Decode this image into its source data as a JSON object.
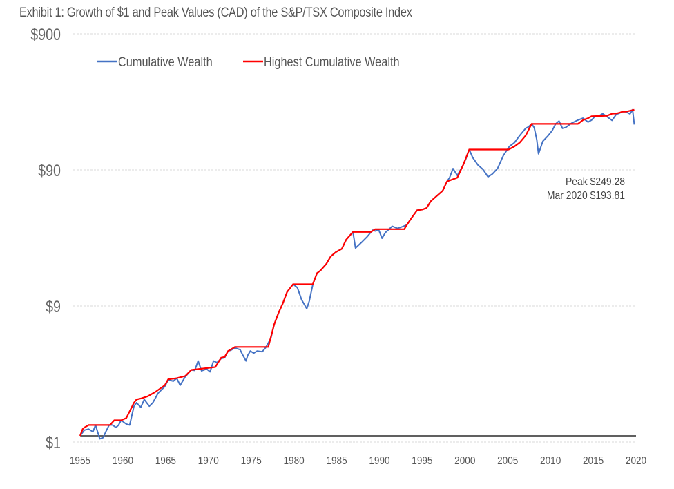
{
  "chart_data": {
    "type": "line",
    "title": "Exhibit 1: Growth of $1 and Peak Values (CAD) of the S&P/TSX Composite Index",
    "xlabel": "",
    "ylabel": "",
    "yscale": "log",
    "ylim": [
      0.9,
      900
    ],
    "xlim": [
      1955,
      2020
    ],
    "ytick_values": [
      0.9,
      9,
      90,
      900
    ],
    "ytick_labels": [
      "$1",
      "$9",
      "$90",
      "$900"
    ],
    "xtick_labels": [
      "1955",
      "1960",
      "1965",
      "1970",
      "1975",
      "1980",
      "1985",
      "1990",
      "1995",
      "2000",
      "2005",
      "2010",
      "2015",
      "2020"
    ],
    "grid": true,
    "baseline_value": 1,
    "legend": {
      "position": "top-left",
      "entries": [
        "Cumulative Wealth",
        "Highest Cumulative Wealth"
      ]
    },
    "colors": {
      "cumulative": "#4472c4",
      "highest": "#ff0000",
      "baseline": "#000000",
      "grid": "#d9d9d9"
    },
    "annotations": [
      "Peak $249.28",
      "Mar 2020 $193.81"
    ],
    "series": [
      {
        "name": "Cumulative Wealth",
        "x": [
          1955.0,
          1955.5,
          1956.0,
          1956.5,
          1956.8,
          1957.3,
          1957.7,
          1958.0,
          1958.4,
          1958.8,
          1959.2,
          1959.5,
          1959.8,
          1960.4,
          1960.8,
          1961.3,
          1961.6,
          1962.1,
          1962.5,
          1963.1,
          1963.5,
          1964.1,
          1964.9,
          1965.3,
          1965.9,
          1966.3,
          1966.7,
          1967.3,
          1968.0,
          1968.4,
          1968.8,
          1969.2,
          1969.8,
          1970.2,
          1970.6,
          1971.0,
          1971.5,
          1971.9,
          1972.3,
          1972.6,
          1973.1,
          1973.7,
          1974.0,
          1974.4,
          1974.6,
          1974.9,
          1975.3,
          1975.7,
          1976.3,
          1976.7,
          1977.3,
          1977.7,
          1978.2,
          1978.7,
          1979.2,
          1979.5,
          1979.9,
          1980.4,
          1980.9,
          1981.5,
          1981.8,
          1982.2,
          1982.7,
          1983.1,
          1983.8,
          1984.3,
          1984.9,
          1985.6,
          1986.1,
          1986.9,
          1987.2,
          1987.5,
          1987.9,
          1988.6,
          1989.2,
          1989.5,
          1989.9,
          1990.3,
          1990.7,
          1991.5,
          1992.1,
          1992.6,
          1993.2,
          1993.7,
          1994.4,
          1995.0,
          1995.5,
          1996.0,
          1996.8,
          1997.4,
          1997.9,
          1998.2,
          1998.6,
          1999.1,
          1999.8,
          2000.1,
          2000.5,
          2000.9,
          2001.5,
          2002.1,
          2002.7,
          2003.2,
          2003.8,
          2004.5,
          2005.2,
          2005.8,
          2006.4,
          2007.1,
          2007.4,
          2007.8,
          2008.1,
          2008.4,
          2008.6,
          2009.1,
          2009.7,
          2010.2,
          2010.6,
          2011.0,
          2011.4,
          2011.8,
          2012.5,
          2013.2,
          2013.8,
          2014.4,
          2014.8,
          2015.2,
          2015.7,
          2016.1,
          2016.6,
          2017.2,
          2017.7,
          2018.0,
          2018.4,
          2018.8,
          2019.3,
          2019.6,
          2019.8
        ],
        "values": [
          1.0,
          1.1,
          1.12,
          1.07,
          1.2,
          0.95,
          0.97,
          1.07,
          1.2,
          1.2,
          1.15,
          1.2,
          1.3,
          1.22,
          1.2,
          1.65,
          1.75,
          1.62,
          1.85,
          1.65,
          1.75,
          2.05,
          2.3,
          2.58,
          2.52,
          2.65,
          2.35,
          2.72,
          3.05,
          3.02,
          3.55,
          3.0,
          3.1,
          2.95,
          3.55,
          3.45,
          3.7,
          3.75,
          4.2,
          4.25,
          4.42,
          4.3,
          3.95,
          3.55,
          3.9,
          4.2,
          4.05,
          4.2,
          4.15,
          4.45,
          5.2,
          6.6,
          8.0,
          9.4,
          11.4,
          12.1,
          13.0,
          12.3,
          10.0,
          8.6,
          9.8,
          12.9,
          15.7,
          16.4,
          18.4,
          20.8,
          22.4,
          23.7,
          27.6,
          31.5,
          24.0,
          25.0,
          26.4,
          29.2,
          32.5,
          32.0,
          32.9,
          28.3,
          31.2,
          34.7,
          33.5,
          34.3,
          35.5,
          39.5,
          45.5,
          46.0,
          47.2,
          53.0,
          58.7,
          63.3,
          74.0,
          79.0,
          92.0,
          82.0,
          98.0,
          108.0,
          127.0,
          111.0,
          98.0,
          91.0,
          80.0,
          84.0,
          92.0,
          115.0,
          134.0,
          143.0,
          161.0,
          182.0,
          186.0,
          196.0,
          184.0,
          150.0,
          118.0,
          146.0,
          160.0,
          175.0,
          196.0,
          206.0,
          182.0,
          185.0,
          199.0,
          209.0,
          216.0,
          202.0,
          209.0,
          223.0,
          225.0,
          233.0,
          222.0,
          208.0,
          231.0,
          234.0,
          241.0,
          241.0,
          232.0,
          249.28,
          193.81
        ]
      },
      {
        "name": "Highest Cumulative Wealth",
        "x": [
          1955.0,
          1955.3,
          1955.5,
          1956.0,
          1958.5,
          1959.0,
          1959.8,
          1960.4,
          1961.3,
          1961.6,
          1962.1,
          1962.9,
          1963.8,
          1964.9,
          1965.3,
          1966.3,
          1967.3,
          1968.0,
          1970.8,
          1971.5,
          1971.9,
          1972.3,
          1972.6,
          1973.1,
          1977.0,
          1977.7,
          1978.2,
          1978.7,
          1979.2,
          1979.9,
          1982.2,
          1982.7,
          1983.1,
          1983.8,
          1984.3,
          1984.9,
          1985.6,
          1986.1,
          1986.9,
          1989.0,
          1989.5,
          1992.9,
          1993.2,
          1993.7,
          1994.4,
          1995.0,
          1995.5,
          1996.0,
          1996.8,
          1997.4,
          1997.9,
          1999.1,
          1999.8,
          2000.5,
          2005.1,
          2005.8,
          2006.4,
          2007.1,
          2007.8,
          2013.2,
          2013.8,
          2014.4,
          2014.8,
          2016.6,
          2017.2,
          2017.7,
          2018.0,
          2018.4,
          2018.8,
          2019.3,
          2019.8
        ],
        "values": [
          1.0,
          1.12,
          1.15,
          1.2,
          1.2,
          1.3,
          1.3,
          1.35,
          1.75,
          1.85,
          1.88,
          1.95,
          2.1,
          2.35,
          2.6,
          2.65,
          2.75,
          3.05,
          3.2,
          3.75,
          3.8,
          4.2,
          4.3,
          4.5,
          4.5,
          6.6,
          8.0,
          9.4,
          11.4,
          13.0,
          13.0,
          15.7,
          16.4,
          18.4,
          20.8,
          22.4,
          23.7,
          27.6,
          31.5,
          31.5,
          33.0,
          33.0,
          35.5,
          39.5,
          45.5,
          46.0,
          47.2,
          53.0,
          58.7,
          63.3,
          74.0,
          79.0,
          98.0,
          127.0,
          127.0,
          134.0,
          143.0,
          161.0,
          196.0,
          196.0,
          209.0,
          216.0,
          223.0,
          225.0,
          233.0,
          234.0,
          236.0,
          241.0,
          241.0,
          245.0,
          249.28
        ]
      }
    ]
  }
}
